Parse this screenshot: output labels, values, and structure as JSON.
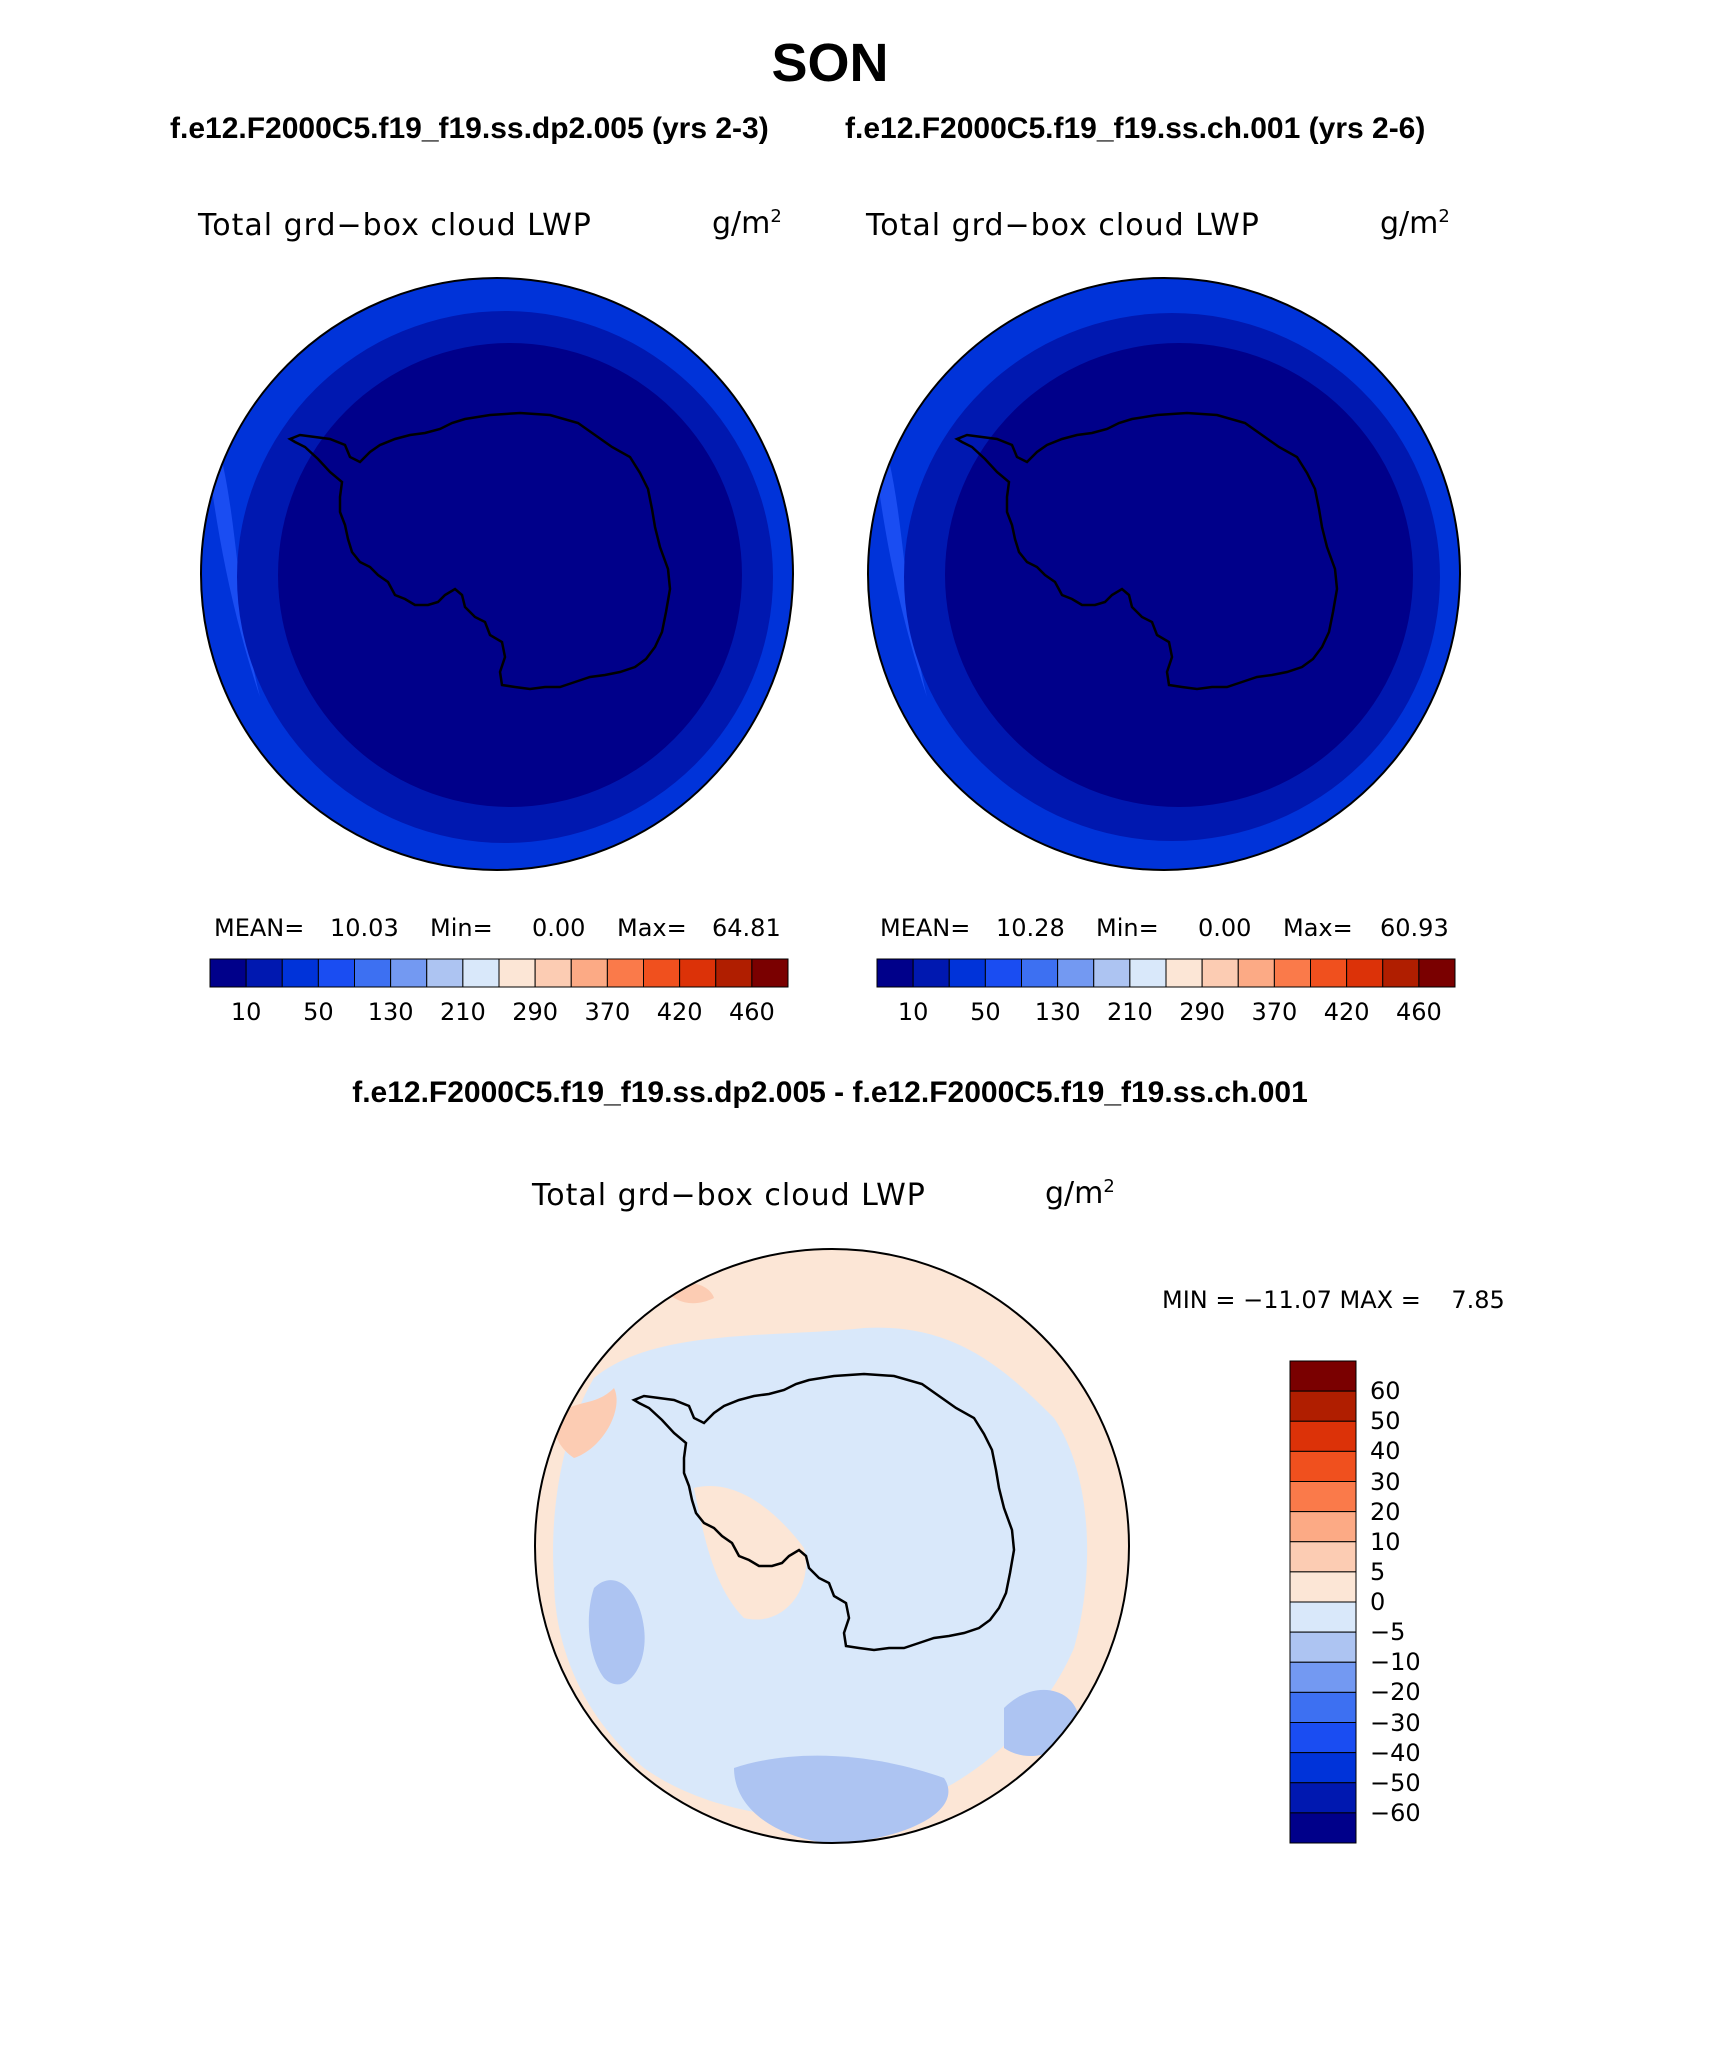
{
  "title": "SON",
  "left_panel": {
    "case_title": "f.e12.F2000C5.f19_f19.ss.dp2.005 (yrs 2-3)",
    "label": "Total grd−box cloud LWP",
    "units_base": "g/m",
    "units_exp": "2",
    "mean_label": "MEAN=",
    "mean_value": "10.03",
    "min_label": "Min=",
    "min_value": "0.00",
    "max_label": "Max=",
    "max_value": "64.81"
  },
  "right_panel": {
    "case_title": "f.e12.F2000C5.f19_f19.ss.ch.001 (yrs 2-6)",
    "label": "Total grd−box cloud LWP",
    "units_base": "g/m",
    "units_exp": "2",
    "mean_label": "MEAN=",
    "mean_value": "10.28",
    "min_label": "Min=",
    "min_value": "0.00",
    "max_label": "Max=",
    "max_value": "60.93"
  },
  "diff_panel": {
    "title": "f.e12.F2000C5.f19_f19.ss.dp2.005 - f.e12.F2000C5.f19_f19.ss.ch.001",
    "label": "Total grd−box cloud LWP",
    "units_base": "g/m",
    "units_exp": "2",
    "minmax_text": "MIN = −11.07 MAX =    7.85"
  },
  "colorbar_main": {
    "colors": [
      "#00008a",
      "#0018b0",
      "#0033d9",
      "#1a4df2",
      "#3d70f2",
      "#7399f2",
      "#adc4f2",
      "#d9e8fa",
      "#fce6d6",
      "#fcccb3",
      "#fcaa85",
      "#fa7a4a",
      "#f0501e",
      "#dc3208",
      "#b01e00",
      "#7a0000"
    ],
    "tick_labels": [
      "10",
      "50",
      "130",
      "210",
      "290",
      "370",
      "420",
      "460"
    ]
  },
  "colorbar_diff": {
    "colors": [
      "#7a0000",
      "#b01e00",
      "#dc3208",
      "#f0501e",
      "#fa7a4a",
      "#fcaa85",
      "#fcccb3",
      "#fce6d6",
      "#d9e8fa",
      "#adc4f2",
      "#7399f2",
      "#3d70f2",
      "#1a4df2",
      "#0033d9",
      "#0018b0",
      "#00008a"
    ],
    "tick_labels": [
      "60",
      "50",
      "40",
      "30",
      "20",
      "10",
      "5",
      "0",
      "−5",
      "−10",
      "−20",
      "−30",
      "−40",
      "−50",
      "−60"
    ]
  },
  "map_colors": {
    "deep_blue": "#00008a",
    "mid_blue": "#0018b0",
    "light_blue": "#0033d9",
    "lighter_blue": "#1a4df2",
    "diff_pos": "#fce6d6",
    "diff_pos2": "#fcccb3",
    "diff_neg": "#d9e8fa",
    "diff_neg2": "#adc4f2"
  }
}
